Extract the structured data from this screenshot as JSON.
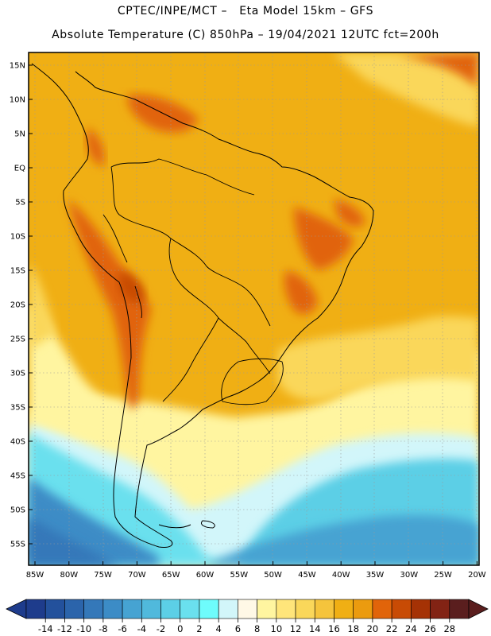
{
  "header": {
    "title_line1": "CPTEC/INPE/MCT –   Eta Model 15km – GFS",
    "title_line2": "Absolute Temperature (C) 850hPa – 19/04/2021 12UTC fct=200h"
  },
  "map": {
    "region": "South America",
    "lat_labels": [
      "15N",
      "10N",
      "5N",
      "EQ",
      "5S",
      "10S",
      "15S",
      "20S",
      "25S",
      "30S",
      "35S",
      "40S",
      "45S",
      "50S",
      "55S"
    ],
    "lon_labels": [
      "85W",
      "80W",
      "75W",
      "70W",
      "65W",
      "60W",
      "55W",
      "50W",
      "45W",
      "40W",
      "35W",
      "30W",
      "25W",
      "20W"
    ]
  },
  "colorbar": {
    "labels": [
      "-14",
      "-12",
      "-10",
      "-8",
      "-6",
      "-4",
      "-2",
      "0",
      "2",
      "4",
      "6",
      "8",
      "10",
      "12",
      "14",
      "16",
      "18",
      "20",
      "22",
      "24",
      "26",
      "28"
    ],
    "colors": [
      "#1e3c8c",
      "#23519c",
      "#2b64ab",
      "#3478b9",
      "#3c8cc6",
      "#46a3d2",
      "#50b9dc",
      "#5ccfe6",
      "#6ae0ee",
      "#6efcfc",
      "#d2f6fa",
      "#fff8e6",
      "#fff5a0",
      "#ffe57a",
      "#fad75a",
      "#f5c43c",
      "#f0af14",
      "#eb9b0f",
      "#e1640a",
      "#c84b05",
      "#a53205",
      "#822314",
      "#5a1e1e"
    ]
  },
  "colors": {
    "hot": "#e1640a",
    "warm": "#f0af14",
    "mild": "#fad75a",
    "cool": "#fff5a0",
    "cold": "#50b9dc"
  }
}
